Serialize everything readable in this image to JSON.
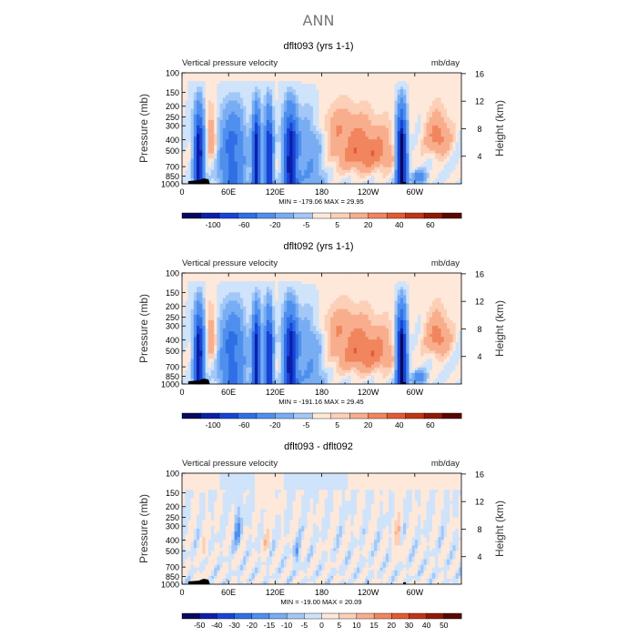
{
  "figure": {
    "title": "ANN"
  },
  "chart_data": [
    {
      "type": "heatmap",
      "title": "dflt093 (yrs 1-1)",
      "left_label": "Vertical pressure velocity",
      "units": "mb/day",
      "ylabel": "Pressure (mb)",
      "y2label": "Height (km)",
      "yticks": [
        "100",
        "150",
        "200",
        "250",
        "300",
        "400",
        "500",
        "700",
        "850",
        "1000"
      ],
      "y2ticks": [
        "16",
        "12",
        "8",
        "4"
      ],
      "xticks": [
        "0",
        "60E",
        "120E",
        "180",
        "120W",
        "60W"
      ],
      "stats": "MIN = -179.06   MAX =   29.95",
      "min": -179.06,
      "max": 29.95,
      "colorbar_labels": [
        "-100",
        "-60",
        "-20",
        "-5",
        "5",
        "20",
        "40",
        "60"
      ],
      "levels": [
        -120,
        -100,
        -80,
        -60,
        -40,
        -20,
        -10,
        -5,
        0,
        5,
        10,
        20,
        30,
        40,
        50,
        60
      ],
      "field": "full"
    },
    {
      "type": "heatmap",
      "title": "dflt092 (yrs 1-1)",
      "left_label": "Vertical pressure velocity",
      "units": "mb/day",
      "ylabel": "Pressure (mb)",
      "y2label": "Height (km)",
      "yticks": [
        "100",
        "150",
        "200",
        "250",
        "300",
        "400",
        "500",
        "700",
        "850",
        "1000"
      ],
      "y2ticks": [
        "16",
        "12",
        "8",
        "4"
      ],
      "xticks": [
        "0",
        "60E",
        "120E",
        "180",
        "120W",
        "60W"
      ],
      "stats": "MIN = -191.16   MAX =   29.45",
      "min": -191.16,
      "max": 29.45,
      "colorbar_labels": [
        "-100",
        "-60",
        "-20",
        "-5",
        "5",
        "20",
        "40",
        "60"
      ],
      "levels": [
        -120,
        -100,
        -80,
        -60,
        -40,
        -20,
        -10,
        -5,
        0,
        5,
        10,
        20,
        30,
        40,
        50,
        60
      ],
      "field": "full"
    },
    {
      "type": "heatmap",
      "title": "dflt093 - dflt092",
      "left_label": "Vertical pressure velocity",
      "units": "mb/day",
      "ylabel": "Pressure (mb)",
      "y2label": "Height (km)",
      "yticks": [
        "100",
        "150",
        "200",
        "250",
        "300",
        "400",
        "500",
        "700",
        "850",
        "1000"
      ],
      "y2ticks": [
        "16",
        "12",
        "8",
        "4"
      ],
      "xticks": [
        "0",
        "60E",
        "120E",
        "180",
        "120W",
        "60W"
      ],
      "stats": "MIN = -19.00   MAX =   20.09",
      "min": -19.0,
      "max": 20.09,
      "colorbar_labels": [
        "-50",
        "-40",
        "-30",
        "-20",
        "-15",
        "-10",
        "-5",
        "0",
        "5",
        "10",
        "15",
        "20",
        "30",
        "40",
        "50"
      ],
      "levels": [
        -60,
        -50,
        -40,
        -30,
        -20,
        -15,
        -10,
        -5,
        0,
        5,
        10,
        15,
        20,
        30,
        40,
        50,
        60
      ],
      "field": "diff"
    }
  ],
  "palette": [
    "#08085e",
    "#0b1fa8",
    "#1744d6",
    "#2f6fe6",
    "#4f8fee",
    "#78adf3",
    "#a3c8f7",
    "#cfe3fb",
    "#fde8da",
    "#fccfb7",
    "#f8ae8c",
    "#f1855e",
    "#e35a33",
    "#c03517",
    "#8f1a08",
    "#5a0703"
  ]
}
